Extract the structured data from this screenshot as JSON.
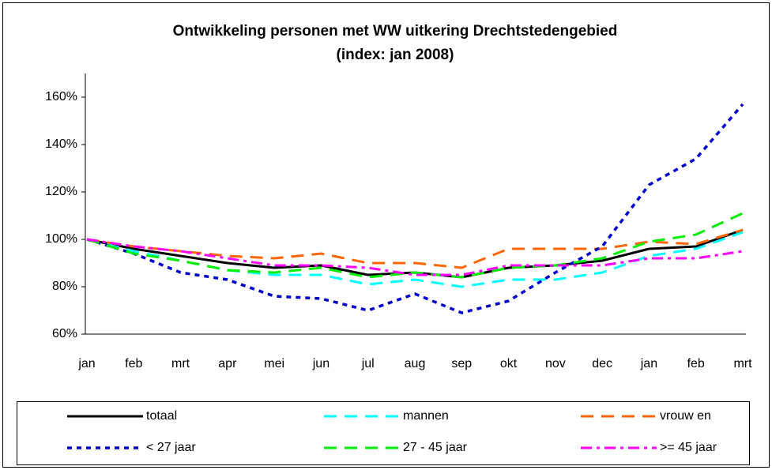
{
  "chart_data": {
    "type": "line",
    "title": "Ontwikkeling personen met WW uitkering Drechtstedengebied",
    "subtitle": "(index: jan 2008)",
    "categories": [
      "jan",
      "feb",
      "mrt",
      "apr",
      "mei",
      "jun",
      "jul",
      "aug",
      "sep",
      "okt",
      "nov",
      "dec",
      "jan",
      "feb",
      "mrt"
    ],
    "series": [
      {
        "name": "totaal",
        "color": "#000000",
        "style": "solid",
        "values": [
          100,
          96,
          93,
          90,
          88,
          89,
          85,
          86,
          84,
          88,
          89,
          91,
          96,
          97,
          104
        ]
      },
      {
        "name": "mannen",
        "color": "#00ffff",
        "style": "dashed",
        "values": [
          100,
          95,
          91,
          87,
          85,
          85,
          81,
          83,
          80,
          83,
          83,
          86,
          93,
          96,
          103
        ]
      },
      {
        "name": "vrouw en",
        "color": "#ff6600",
        "style": "dashed",
        "values": [
          100,
          97,
          95,
          93,
          92,
          94,
          90,
          90,
          88,
          96,
          96,
          96,
          99,
          98,
          104
        ]
      },
      {
        "name": "< 27 jaar",
        "color": "#0000cc",
        "style": "dotted",
        "values": [
          100,
          94,
          86,
          83,
          76,
          75,
          70,
          77,
          69,
          74,
          86,
          97,
          123,
          134,
          157
        ]
      },
      {
        "name": "27 - 45 jaar",
        "color": "#00ee00",
        "style": "dashed",
        "values": [
          100,
          94,
          91,
          87,
          86,
          88,
          84,
          86,
          84,
          88,
          89,
          92,
          99,
          102,
          111
        ]
      },
      {
        "name": ">= 45 jaar",
        "color": "#ff00ff",
        "style": "dashdot",
        "values": [
          100,
          97,
          95,
          92,
          89,
          89,
          88,
          85,
          85,
          89,
          89,
          89,
          92,
          92,
          95
        ]
      }
    ],
    "ylim": [
      60,
      170
    ],
    "yticks": [
      {
        "value": 60,
        "label": "60%"
      },
      {
        "value": 80,
        "label": "80%"
      },
      {
        "value": 100,
        "label": "100%"
      },
      {
        "value": 120,
        "label": "120%"
      },
      {
        "value": 140,
        "label": "140%"
      },
      {
        "value": 160,
        "label": "160%"
      }
    ],
    "grid": false,
    "legend": "bottom"
  }
}
